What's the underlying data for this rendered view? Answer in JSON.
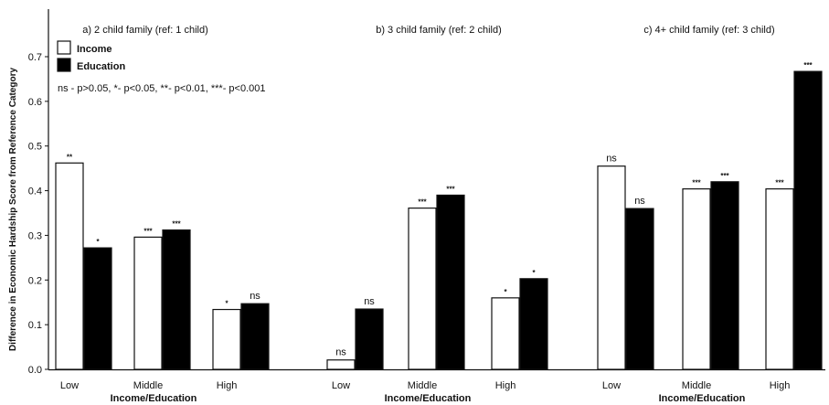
{
  "chart_data": {
    "type": "bar",
    "ylabel": "Difference in Economic Hardship Score from Reference Category",
    "xlabel": "Income/Education",
    "ylim": [
      0,
      0.75
    ],
    "yticks": [
      "0.0",
      "0.1",
      "0.2",
      "0.3",
      "0.4",
      "0.5",
      "0.6",
      "0.7"
    ],
    "legend": {
      "items": [
        {
          "name": "Income",
          "color": "#ffffff"
        },
        {
          "name": "Education",
          "color": "#000000"
        }
      ],
      "note": "ns - p>0.05,  *- p<0.05,  **- p<0.01,  ***- p<0.001"
    },
    "panels": [
      {
        "title": "a) 2 child family (ref: 1 child)",
        "categories": [
          "Low",
          "Middle",
          "High"
        ],
        "series": [
          {
            "name": "Income",
            "values": [
              0.462,
              0.296,
              0.134
            ],
            "sig": [
              "**",
              "***",
              "*"
            ]
          },
          {
            "name": "Education",
            "values": [
              0.272,
              0.312,
              0.147
            ],
            "sig": [
              "*",
              "***",
              "ns"
            ]
          }
        ]
      },
      {
        "title": "b) 3 child family (ref: 2 child)",
        "categories": [
          "Low",
          "Middle",
          "High"
        ],
        "series": [
          {
            "name": "Income",
            "values": [
              0.021,
              0.361,
              0.16
            ],
            "sig": [
              "ns",
              "***",
              "*"
            ]
          },
          {
            "name": "Education",
            "values": [
              0.135,
              0.39,
              0.203
            ],
            "sig": [
              "ns",
              "***",
              "*"
            ]
          }
        ]
      },
      {
        "title": "c) 4+ child family (ref: 3 child)",
        "categories": [
          "Low",
          "Middle",
          "High"
        ],
        "series": [
          {
            "name": "Income",
            "values": [
              0.455,
              0.404,
              0.404
            ],
            "sig": [
              "ns",
              "***",
              "***"
            ]
          },
          {
            "name": "Education",
            "values": [
              0.36,
              0.42,
              0.667
            ],
            "sig": [
              "ns",
              "***",
              "***"
            ]
          }
        ]
      }
    ]
  }
}
